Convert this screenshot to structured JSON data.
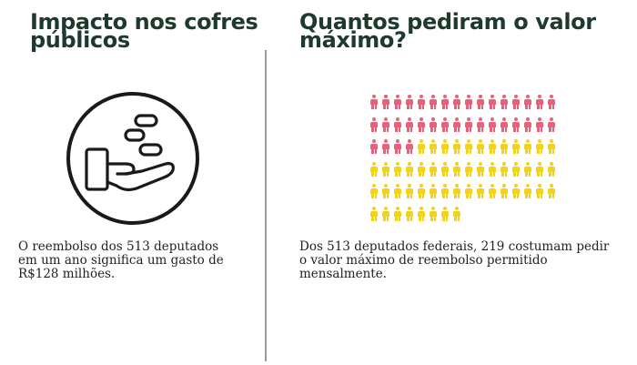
{
  "left": {
    "title": [
      "Impacto nos cofres",
      "públicos"
    ],
    "icon": "hand-with-coins-icon",
    "text": [
      "O reembolso dos 513 deputados",
      "em um ano significa um gasto de",
      "R$128 milhões."
    ]
  },
  "right": {
    "title": [
      "Quantos pediram o valor",
      "máximo?"
    ],
    "text": [
      "Dos 513 deputados federais, 219 costumam pedir",
      "o valor máximo de reembolso permitido",
      "mensalmente."
    ],
    "pictogram": {
      "icon": "person-icon",
      "columns": 16,
      "rows": 6,
      "highlighted_count": 36,
      "total_count": 88,
      "highlight_color": "#e8617a",
      "base_color": "#f2d21b"
    }
  },
  "colors": {
    "heading": "#1d3a2c",
    "divider": "#9a9a9a"
  }
}
